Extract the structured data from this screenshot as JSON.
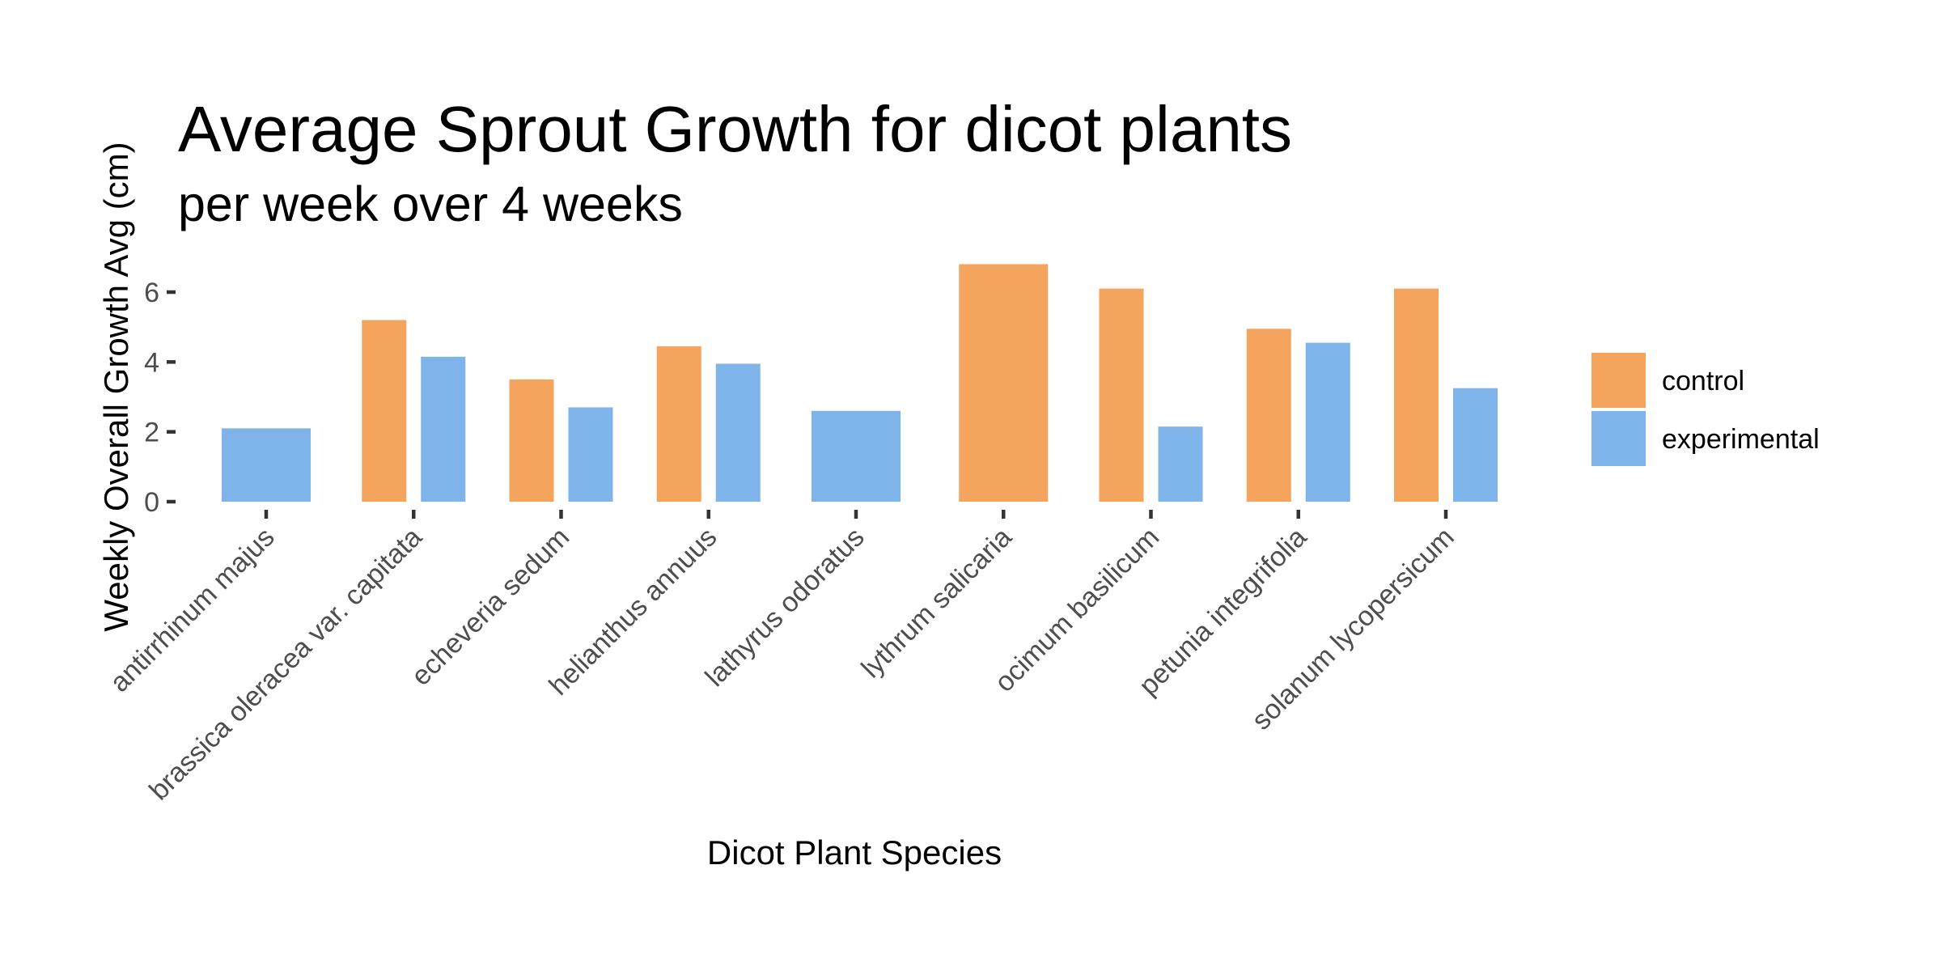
{
  "chart_data": {
    "type": "bar",
    "title": "Average Sprout Growth for dicot plants",
    "subtitle": "per week over 4 weeks",
    "xlabel": "Dicot Plant Species",
    "ylabel": "Weekly Overall Growth Avg (cm)",
    "categories": [
      "antirrhinum majus",
      "brassica oleracea var. capitata",
      "echeveria sedum",
      "helianthus annuus",
      "lathyrus odoratus",
      "lythrum salicaria",
      "ocimum basilicum",
      "petunia integrifolia",
      "solanum lycopersicum"
    ],
    "series": [
      {
        "name": "control",
        "color": "#F5A45D",
        "values": [
          null,
          5.2,
          3.5,
          4.45,
          null,
          6.8,
          6.1,
          4.95,
          6.1
        ]
      },
      {
        "name": "experimental",
        "color": "#7EB4EA",
        "values": [
          2.1,
          4.15,
          2.7,
          3.95,
          2.6,
          null,
          2.15,
          4.55,
          3.25
        ]
      }
    ],
    "yticks": [
      "0",
      "2",
      "4",
      "6"
    ],
    "ylim": [
      0,
      7
    ],
    "grid": false,
    "legend_position": "right"
  }
}
